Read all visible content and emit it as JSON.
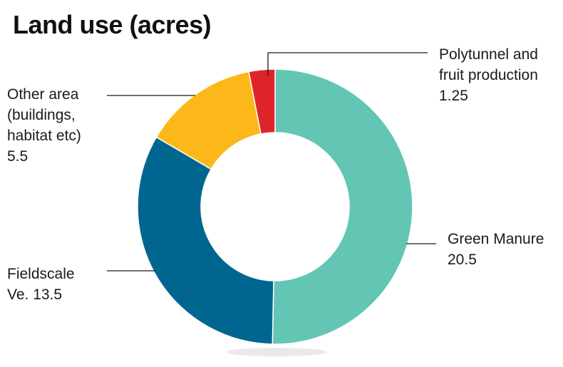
{
  "chart_data": {
    "type": "pie",
    "title": "Land use (acres)",
    "slices": [
      {
        "lines": [
          "Green Manure",
          "20.5"
        ],
        "value": 20.5,
        "color": "#63c6b4"
      },
      {
        "lines": [
          "Fieldscale",
          "Ve. 13.5"
        ],
        "value": 13.5,
        "color": "#006690"
      },
      {
        "lines": [
          "Other area",
          "(buildings,",
          "habitat etc)",
          "5.5"
        ],
        "value": 5.5,
        "color": "#fbb818"
      },
      {
        "lines": [
          "Polytunnel and",
          "fruit production",
          "1.25"
        ],
        "value": 1.25,
        "color": "#de2428"
      }
    ]
  }
}
